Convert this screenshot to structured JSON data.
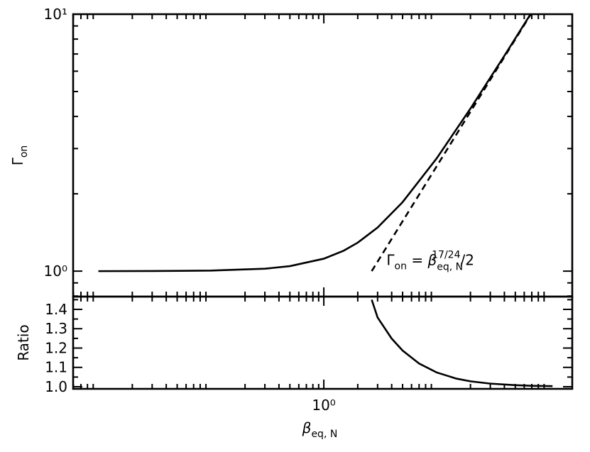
{
  "chart_data": [
    {
      "type": "line",
      "ylabel": {
        "symbol": "Γ",
        "subscript": "on"
      },
      "xscale": "log",
      "yscale": "log",
      "xlim": [
        0.00597,
        160
      ],
      "ylim": [
        0.796,
        10
      ],
      "xticks": [
        1
      ],
      "xticklabels": false,
      "xminorticks": [
        0.006,
        0.007,
        0.008,
        0.009,
        0.02,
        0.03,
        0.04,
        0.05,
        0.06,
        0.07,
        0.08,
        0.09,
        0.2,
        0.3,
        0.4,
        0.5,
        0.6,
        0.7,
        0.8,
        0.9,
        2,
        3,
        4,
        5,
        6,
        7,
        8,
        9,
        20,
        30,
        40,
        50,
        60,
        70,
        80,
        90
      ],
      "yticks": [
        {
          "value": 1,
          "label": "10⁰"
        },
        {
          "value": 10,
          "label": "10¹"
        }
      ],
      "yminorticks": [
        0.8,
        0.9,
        2,
        3,
        4,
        5,
        6,
        7,
        8,
        9
      ],
      "series": [
        {
          "color": "#000000",
          "dash": false,
          "x": [
            0.01,
            0.03,
            0.1,
            0.3,
            0.5,
            1,
            1.5,
            2,
            3,
            5,
            10,
            20,
            40,
            68
          ],
          "values": [
            1.0,
            1.001,
            1.005,
            1.022,
            1.046,
            1.118,
            1.201,
            1.291,
            1.478,
            1.856,
            2.743,
            4.292,
            6.893,
            9.98
          ]
        },
        {
          "color": "#000000",
          "dash": true,
          "x": [
            2.661,
            68.7
          ],
          "values": [
            1,
            10
          ]
        }
      ],
      "annotation": {
        "lhs": "Γ",
        "lhs_sub": "on",
        "eq": " = ",
        "base": "β",
        "base_sub": "eq, N",
        "exponent": "17/24",
        "rest": "/2",
        "x": 3.6,
        "y": 1.09
      }
    },
    {
      "type": "line",
      "ylabel": "Ratio",
      "xlabel": {
        "symbol": "β",
        "subscript": "eq, N"
      },
      "xscale": "log",
      "yscale": "linear",
      "xlim": [
        0.00597,
        160
      ],
      "ylim": [
        0.989,
        1.466
      ],
      "xticks": [
        {
          "value": 1,
          "label": "10⁰"
        }
      ],
      "xticklabels": true,
      "xminorticks": [
        0.006,
        0.007,
        0.008,
        0.009,
        0.02,
        0.03,
        0.04,
        0.05,
        0.06,
        0.07,
        0.08,
        0.09,
        0.2,
        0.3,
        0.4,
        0.5,
        0.6,
        0.7,
        0.8,
        0.9,
        2,
        3,
        4,
        5,
        6,
        7,
        8,
        9,
        20,
        30,
        40,
        50,
        60,
        70,
        80,
        90
      ],
      "yticks": [
        {
          "value": 1,
          "label": "1.0"
        },
        1.1,
        1.2,
        1.3,
        1.4
      ],
      "yminorticks": [
        1.05,
        1.15,
        1.25,
        1.35,
        1.45
      ],
      "series": [
        {
          "color": "#000000",
          "dash": false,
          "x": [
            2.66,
            3,
            4,
            5,
            7,
            10,
            15,
            20,
            30,
            50,
            70,
            107
          ],
          "values": [
            1.45,
            1.358,
            1.249,
            1.187,
            1.12,
            1.074,
            1.042,
            1.028,
            1.016,
            1.008,
            1.005,
            1.003
          ]
        }
      ]
    }
  ]
}
